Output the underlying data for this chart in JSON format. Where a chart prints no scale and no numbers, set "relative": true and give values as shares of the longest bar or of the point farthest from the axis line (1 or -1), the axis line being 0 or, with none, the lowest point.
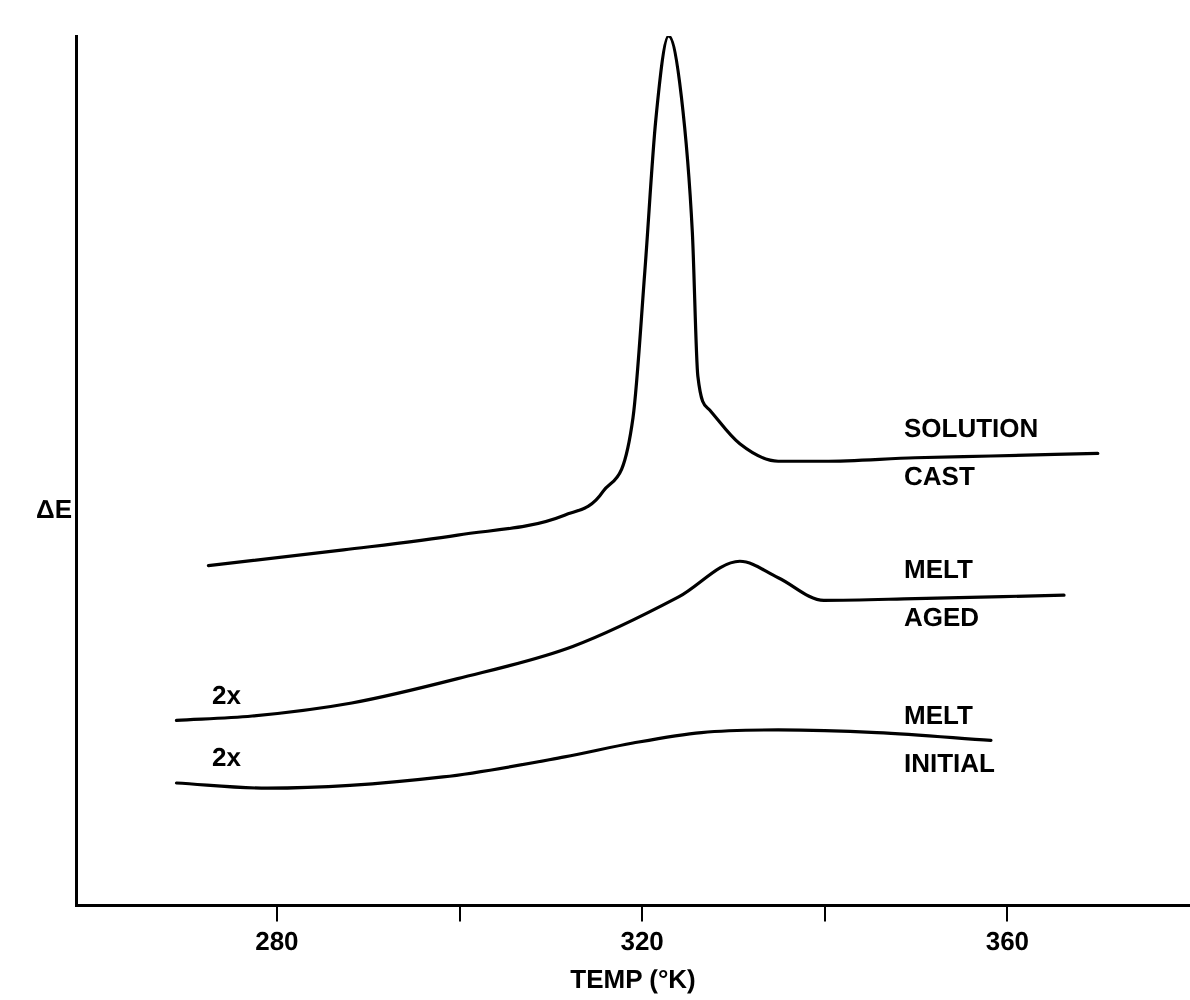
{
  "chart_data": {
    "type": "line",
    "relative": true,
    "xlabel": "TEMP (°K)",
    "ylabel": "ΔE",
    "xlim": [
      258,
      380
    ],
    "xticks": [
      280,
      {
        "value": 300,
        "label": null
      },
      320,
      {
        "value": 340,
        "label": null
      },
      360
    ],
    "grid": false,
    "legend": false,
    "marker": "none",
    "line_style": "solid",
    "series": [
      {
        "name": "SOLUTION CAST",
        "color": "#000000",
        "x": [
          272.5,
          287.3,
          299.8,
          311.5,
          315.7,
          319.0,
          320.3,
          321.5,
          322.9,
          324.3,
          325.5,
          326.1,
          327.4,
          330.7,
          334.9,
          339.9,
          349.9,
          358.2,
          369.9
        ],
        "values": [
          0.391,
          0.409,
          0.426,
          0.449,
          0.476,
          0.561,
          0.73,
          0.904,
          1.0,
          0.93,
          0.774,
          0.609,
          0.57,
          0.531,
          0.511,
          0.511,
          0.515,
          0.517,
          0.52
        ]
      },
      {
        "name": "MELT AGED",
        "color": "#000000",
        "x": [
          269.0,
          277.3,
          288.2,
          299.8,
          312.4,
          324.0,
          330.7,
          334.9,
          339.9,
          349.9,
          366.2
        ],
        "values": [
          0.213,
          0.218,
          0.233,
          0.261,
          0.298,
          0.355,
          0.396,
          0.377,
          0.351,
          0.353,
          0.357
        ]
      },
      {
        "name": "MELT INITIAL",
        "color": "#000000",
        "x": [
          269.0,
          279.0,
          298.2,
          311.5,
          319.0,
          326.5,
          334.9,
          345.7,
          358.2
        ],
        "values": [
          0.141,
          0.135,
          0.148,
          0.171,
          0.187,
          0.199,
          0.202,
          0.199,
          0.19
        ]
      }
    ],
    "annotations": [
      {
        "text": "2x",
        "x": 269.0,
        "y": 0.213
      },
      {
        "text": "2x",
        "x": 269.0,
        "y": 0.141
      }
    ]
  }
}
